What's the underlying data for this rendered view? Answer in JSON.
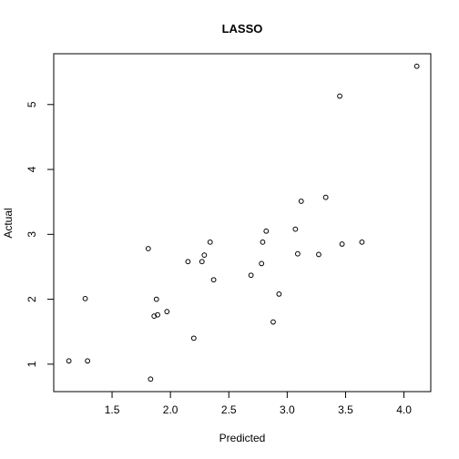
{
  "chart_data": {
    "type": "scatter",
    "title": "LASSO",
    "xlabel": "Predicted",
    "ylabel": "Actual",
    "xlim": [
      1.12,
      4.11
    ],
    "ylim": [
      0.77,
      5.59
    ],
    "xticks": [
      "1.5",
      "2.0",
      "2.5",
      "3.0",
      "3.5",
      "4.0"
    ],
    "yticks": [
      "1",
      "2",
      "3",
      "4",
      "5"
    ],
    "grid": false,
    "points": [
      {
        "x": 1.13,
        "y": 1.05
      },
      {
        "x": 1.27,
        "y": 2.01
      },
      {
        "x": 1.29,
        "y": 1.05
      },
      {
        "x": 1.81,
        "y": 2.78
      },
      {
        "x": 1.83,
        "y": 0.77
      },
      {
        "x": 1.86,
        "y": 1.74
      },
      {
        "x": 1.88,
        "y": 2.0
      },
      {
        "x": 1.89,
        "y": 1.76
      },
      {
        "x": 1.97,
        "y": 1.81
      },
      {
        "x": 2.15,
        "y": 2.58
      },
      {
        "x": 2.2,
        "y": 1.4
      },
      {
        "x": 2.27,
        "y": 2.58
      },
      {
        "x": 2.29,
        "y": 2.68
      },
      {
        "x": 2.34,
        "y": 2.88
      },
      {
        "x": 2.37,
        "y": 2.3
      },
      {
        "x": 2.69,
        "y": 2.37
      },
      {
        "x": 2.78,
        "y": 2.55
      },
      {
        "x": 2.79,
        "y": 2.88
      },
      {
        "x": 2.82,
        "y": 3.05
      },
      {
        "x": 2.88,
        "y": 1.65
      },
      {
        "x": 2.93,
        "y": 2.08
      },
      {
        "x": 3.07,
        "y": 3.08
      },
      {
        "x": 3.09,
        "y": 2.7
      },
      {
        "x": 3.12,
        "y": 3.51
      },
      {
        "x": 3.27,
        "y": 2.69
      },
      {
        "x": 3.33,
        "y": 3.57
      },
      {
        "x": 3.45,
        "y": 5.13
      },
      {
        "x": 3.47,
        "y": 2.85
      },
      {
        "x": 3.64,
        "y": 2.88
      },
      {
        "x": 4.11,
        "y": 5.59
      }
    ]
  }
}
